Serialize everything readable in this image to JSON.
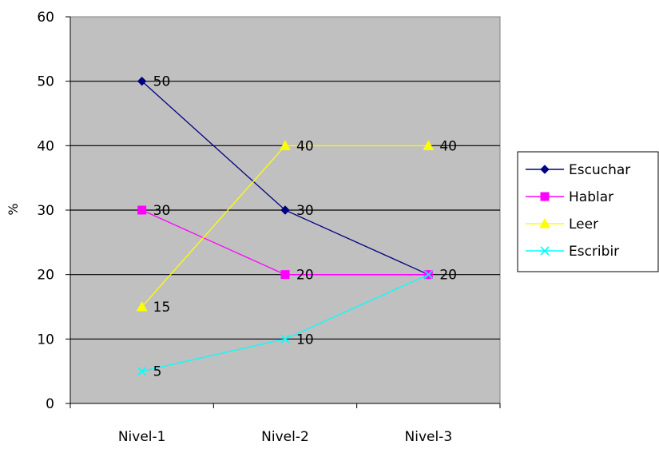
{
  "chart_data": {
    "type": "line",
    "categories": [
      "Nivel-1",
      "Nivel-2",
      "Nivel-3"
    ],
    "ylabel": "%",
    "xlabel": "",
    "title": "",
    "ylim": [
      0,
      60
    ],
    "yticks": [
      0,
      10,
      20,
      30,
      40,
      50,
      60
    ],
    "grid": true,
    "legend": "right",
    "plot_background": "#c0c0c0",
    "series": [
      {
        "name": "Escuchar",
        "values": [
          50,
          30,
          20
        ],
        "color": "#000080",
        "marker": "diamond",
        "labels": [
          "50",
          "30",
          ""
        ]
      },
      {
        "name": "Hablar",
        "values": [
          30,
          20,
          20
        ],
        "color": "#ff00ff",
        "marker": "square",
        "labels": [
          "30",
          "20",
          "20"
        ]
      },
      {
        "name": "Leer",
        "values": [
          15,
          40,
          40
        ],
        "color": "#ffff00",
        "marker": "triangle",
        "labels": [
          "15",
          "40",
          "40"
        ]
      },
      {
        "name": "Escribir",
        "values": [
          5,
          10,
          20
        ],
        "color": "#00ffff",
        "marker": "x",
        "labels": [
          "5",
          "10",
          ""
        ]
      }
    ]
  }
}
